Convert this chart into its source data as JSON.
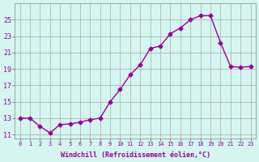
{
  "x": [
    0,
    1,
    2,
    3,
    4,
    5,
    6,
    7,
    8,
    9,
    10,
    11,
    12,
    13,
    14,
    15,
    16,
    17,
    18,
    19,
    20,
    21,
    22,
    23
  ],
  "y": [
    13,
    13,
    12,
    11.2,
    12.2,
    12.3,
    12.5,
    12.8,
    13,
    15,
    16.5,
    18.3,
    19.5,
    21.5,
    21.8,
    23.3,
    24,
    25,
    25.5,
    25.5,
    22.2,
    19.3,
    19.2,
    19.3
  ],
  "line_color": "#990099",
  "marker": "D",
  "marker_size": 2.5,
  "bg_color": "#d5f5f0",
  "grid_color": "#aaaaaa",
  "xlabel": "Windchill (Refroidissement éolien,°C)",
  "xlabel_color": "#990099",
  "tick_color": "#990099",
  "ylabel_ticks": [
    11,
    13,
    15,
    17,
    19,
    21,
    23,
    25
  ],
  "xlim": [
    -0.5,
    23.5
  ],
  "ylim": [
    10.5,
    27
  ],
  "xticks": [
    0,
    1,
    2,
    3,
    4,
    5,
    6,
    7,
    8,
    9,
    10,
    11,
    12,
    13,
    14,
    15,
    16,
    17,
    18,
    19,
    20,
    21,
    22,
    23
  ]
}
